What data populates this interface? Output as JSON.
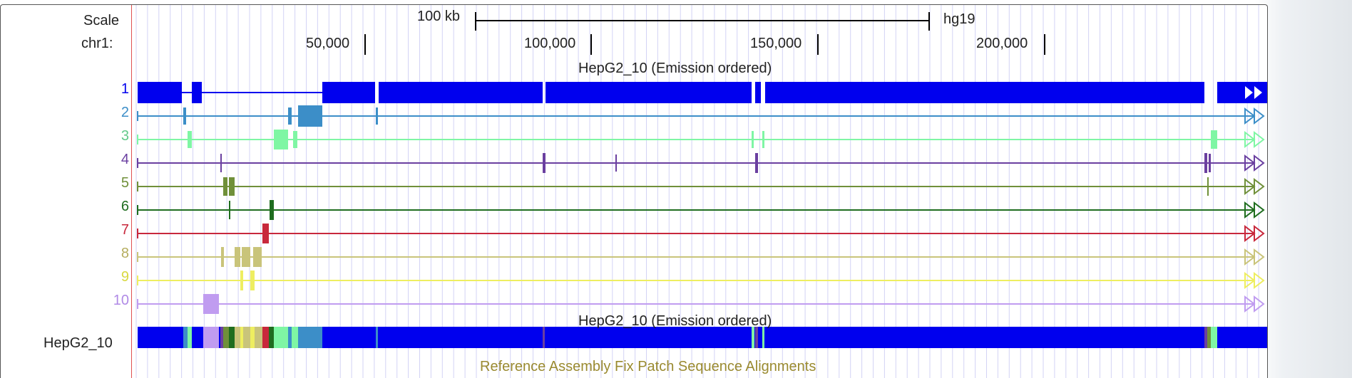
{
  "ruler": {
    "scale_label": "Scale",
    "chrom_label": "chr1:",
    "scale_bar_text": "100 kb",
    "assembly": "hg19",
    "ticks": [
      "50,000",
      "100,000",
      "150,000",
      "200,000"
    ]
  },
  "track": {
    "title": "HepG2_10 (Emission ordered)",
    "dense_title": "HepG2_10 (Emission ordered)",
    "dense_label": "HepG2_10",
    "states": [
      {
        "label": "1",
        "color": "#0000ee"
      },
      {
        "label": "2",
        "color": "#3c8ec8"
      },
      {
        "label": "3",
        "color": "#7ff6a4"
      },
      {
        "label": "4",
        "color": "#6a3fa0"
      },
      {
        "label": "5",
        "color": "#70903a"
      },
      {
        "label": "6",
        "color": "#1f6d1f"
      },
      {
        "label": "7",
        "color": "#c8283c"
      },
      {
        "label": "8",
        "color": "#c9c47a"
      },
      {
        "label": "9",
        "color": "#eeee60"
      },
      {
        "label": "10",
        "color": "#c09cf0"
      }
    ]
  },
  "footer": {
    "ref_assembly_label": "Reference Assembly Fix Patch Sequence Alignments",
    "ref_assembly_color": "#9a8a30"
  }
}
